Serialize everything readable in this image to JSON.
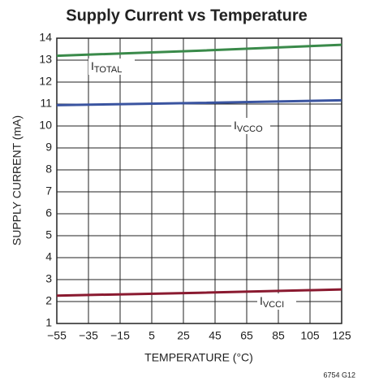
{
  "chart_data": {
    "type": "line",
    "title": "Supply Current vs Temperature",
    "xlabel": "TEMPERATURE (°C)",
    "ylabel": "SUPPLY CURRENT (mA)",
    "note": "6754 G12",
    "x": [
      -55,
      35,
      125
    ],
    "series": [
      {
        "name": "I",
        "subscript": "TOTAL",
        "color": "#3a8a4a",
        "values": [
          13.2,
          13.43,
          13.7
        ]
      },
      {
        "name": "I",
        "subscript": "VCCO",
        "color": "#3a54a0",
        "values": [
          10.95,
          11.05,
          11.17
        ]
      },
      {
        "name": "I",
        "subscript": "VCCI",
        "color": "#8a1a30",
        "values": [
          2.27,
          2.4,
          2.55
        ]
      }
    ],
    "xlim": [
      -55,
      125
    ],
    "xticks": [
      {
        "value": -55,
        "label": "−55"
      },
      {
        "value": -35,
        "label": "−35"
      },
      {
        "value": -15,
        "label": "−15"
      },
      5,
      25,
      45,
      65,
      85,
      105,
      125
    ],
    "ylim": [
      1,
      14
    ],
    "yticks": [
      1,
      2,
      3,
      4,
      5,
      6,
      7,
      8,
      9,
      10,
      11,
      12,
      13,
      14
    ],
    "grid": true
  }
}
